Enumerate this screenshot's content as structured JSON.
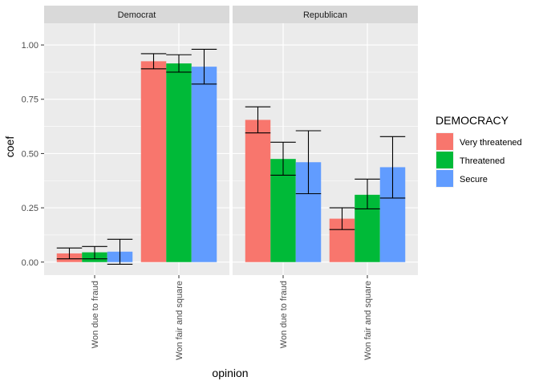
{
  "chart_data": {
    "type": "bar",
    "facets": [
      "Democrat",
      "Republican"
    ],
    "categories": [
      "Won due to fraud",
      "Won fair and square"
    ],
    "xlabel": "opinion",
    "ylabel": "coef",
    "ylim": [
      -0.06,
      1.1
    ],
    "yticks": [
      0.0,
      0.25,
      0.5,
      0.75,
      1.0
    ],
    "ytick_labels": [
      "0.00",
      "0.25",
      "0.50",
      "0.75",
      "1.00"
    ],
    "grid": true,
    "legend": {
      "title": "DEMOCRACY",
      "placement": "right",
      "entries": [
        "Very threatened",
        "Threatened",
        "Secure"
      ]
    },
    "series": [
      {
        "name": "Very threatened",
        "color": "#F8766D",
        "values": {
          "Democrat": [
            0.04,
            0.925
          ],
          "Republican": [
            0.655,
            0.2
          ]
        },
        "ci": {
          "Democrat": [
            [
              0.015,
              0.065
            ],
            [
              0.89,
              0.96
            ]
          ],
          "Republican": [
            [
              0.595,
              0.715
            ],
            [
              0.15,
              0.25
            ]
          ]
        }
      },
      {
        "name": "Threatened",
        "color": "#00BA38",
        "values": {
          "Democrat": [
            0.045,
            0.915
          ],
          "Republican": [
            0.475,
            0.31
          ]
        },
        "ci": {
          "Democrat": [
            [
              0.015,
              0.072
            ],
            [
              0.875,
              0.955
            ]
          ],
          "Republican": [
            [
              0.4,
              0.552
            ],
            [
              0.245,
              0.382
            ]
          ]
        }
      },
      {
        "name": "Secure",
        "color": "#619CFF",
        "values": {
          "Democrat": [
            0.048,
            0.9
          ],
          "Republican": [
            0.46,
            0.437
          ]
        },
        "ci": {
          "Democrat": [
            [
              -0.01,
              0.105
            ],
            [
              0.82,
              0.98
            ]
          ],
          "Republican": [
            [
              0.315,
              0.605
            ],
            [
              0.295,
              0.578
            ]
          ]
        }
      }
    ]
  }
}
